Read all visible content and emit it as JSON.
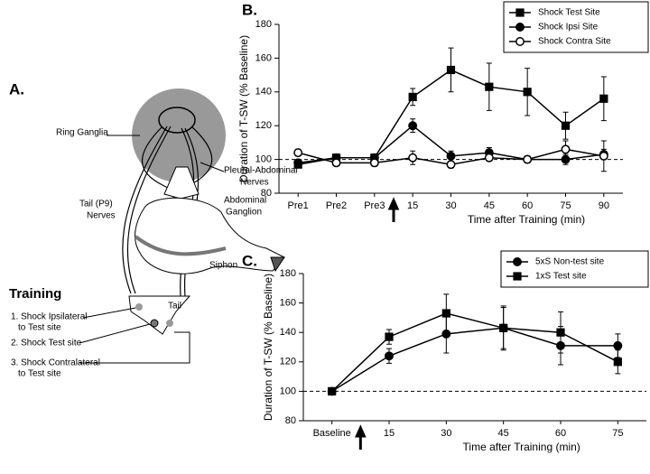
{
  "panel_a": {
    "label": "A.",
    "ring_ganglia": "Ring Ganglia",
    "pleural_abdominal_nerves": [
      "Pleural-Abdominal",
      "Nerves"
    ],
    "abdominal_ganglion": [
      "Abdominal",
      "Ganglion"
    ],
    "tail_nerves": [
      "Tail (P9)",
      "Nerves"
    ],
    "siphon": "Siphon",
    "tail": "Tail",
    "training": {
      "title": "Training",
      "steps": [
        [
          "1. Shock Ipsilateral",
          "to Test site"
        ],
        [
          "2. Shock Test site"
        ],
        [
          "3. Shock Contralateral",
          "to Test site"
        ]
      ]
    }
  },
  "chart_data": [
    {
      "type": "line",
      "title": "B.",
      "y_label": "Duration of T-SW (% Baseline)",
      "x_label": "Time after Training (min)",
      "categories": [
        "Pre1",
        "Pre2",
        "Pre3",
        "15",
        "30",
        "45",
        "60",
        "75",
        "90"
      ],
      "ylim": [
        80,
        180
      ],
      "yticks": [
        80,
        100,
        120,
        140,
        160,
        180
      ],
      "hline": 100,
      "legend": "upper right",
      "series": [
        {
          "name": "Shock Test Site",
          "color": "#000000",
          "marker": "square",
          "fill": "#000000",
          "values": [
            97,
            101,
            101,
            137,
            153,
            143,
            140,
            120,
            136
          ],
          "errors": [
            2,
            2,
            2,
            5,
            13,
            14,
            14,
            8,
            13
          ]
        },
        {
          "name": "Shock Ipsi Site",
          "color": "#000000",
          "marker": "circle",
          "fill": "#000000",
          "values": [
            98,
            101,
            101,
            120,
            102,
            104,
            100,
            100,
            103
          ],
          "errors": [
            2,
            2,
            2,
            4,
            3,
            3,
            2,
            3,
            3
          ]
        },
        {
          "name": "Shock Contra Site",
          "color": "#000000",
          "marker": "circle",
          "fill": "#ffffff",
          "values": [
            104,
            98,
            98,
            101,
            97,
            101,
            100,
            106,
            102
          ],
          "errors": [
            2,
            2,
            2,
            4,
            2,
            2,
            2,
            5,
            9
          ]
        }
      ]
    },
    {
      "type": "line",
      "title": "C.",
      "y_label": "Duration of T-SW (% Baseline)",
      "x_label": "Time after Training (min)",
      "categories": [
        "Baseline",
        "15",
        "30",
        "45",
        "60",
        "75"
      ],
      "ylim": [
        80,
        180
      ],
      "yticks": [
        80,
        100,
        120,
        140,
        160,
        180
      ],
      "hline": 100,
      "legend": "upper right",
      "series": [
        {
          "name": "5xS Non-test site",
          "color": "#000000",
          "marker": "circle",
          "fill": "#000000",
          "values": [
            100,
            124,
            139,
            143,
            131,
            131
          ],
          "errors": [
            0,
            5,
            13,
            15,
            13,
            8
          ]
        },
        {
          "name": "1xS Test site",
          "color": "#000000",
          "marker": "square",
          "fill": "#000000",
          "values": [
            100,
            137,
            153,
            143,
            140,
            120
          ],
          "errors": [
            0,
            5,
            13,
            14,
            14,
            8
          ]
        }
      ]
    }
  ]
}
